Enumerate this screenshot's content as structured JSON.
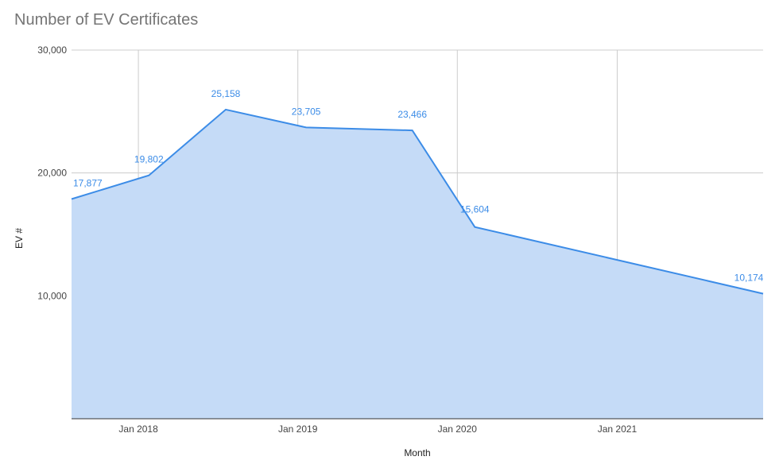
{
  "chart_data": {
    "type": "area",
    "title": "Number of EV Certificates",
    "xlabel": "Month",
    "ylabel": "EV #",
    "x_range": [
      "2017-08-01",
      "2021-12-01"
    ],
    "ylim": [
      0,
      30000
    ],
    "y_ticks": [
      {
        "value": 10000,
        "label": "10,000"
      },
      {
        "value": 20000,
        "label": "20,000"
      },
      {
        "value": 30000,
        "label": "30,000"
      }
    ],
    "x_ticks": [
      {
        "date": "2018-01-01",
        "label": "Jan 2018"
      },
      {
        "date": "2019-01-01",
        "label": "Jan 2019"
      },
      {
        "date": "2020-01-01",
        "label": "Jan 2020"
      },
      {
        "date": "2021-01-01",
        "label": "Jan 2021"
      }
    ],
    "grid": true,
    "colors": {
      "line": "#3c8ce7",
      "fill": "#c5dbf7",
      "grid": "#cccccc",
      "label": "#3c8ce7"
    },
    "series": [
      {
        "points": [
          {
            "x": "2017-08-01",
            "y": 17877,
            "label": "17,877"
          },
          {
            "x": "2018-01-25",
            "y": 19802,
            "label": "19,802"
          },
          {
            "x": "2018-07-20",
            "y": 25158,
            "label": "25,158"
          },
          {
            "x": "2019-01-20",
            "y": 23705,
            "label": "23,705"
          },
          {
            "x": "2019-09-20",
            "y": 23466,
            "label": "23,466"
          },
          {
            "x": "2020-02-10",
            "y": 15604,
            "label": "15,604"
          },
          {
            "x": "2021-12-01",
            "y": 10174,
            "label": "10,174"
          }
        ]
      }
    ]
  }
}
